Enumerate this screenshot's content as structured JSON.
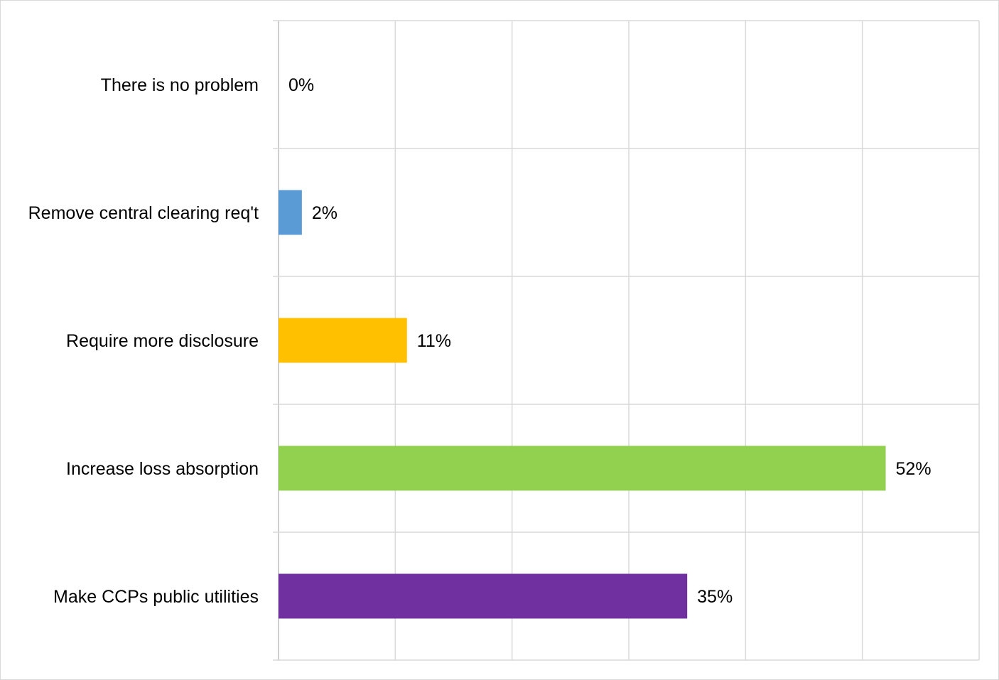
{
  "chart_data": {
    "type": "bar",
    "orientation": "horizontal",
    "title": "",
    "xlabel": "",
    "ylabel": "",
    "xlim": [
      0,
      60
    ],
    "grid": true,
    "legend": "none",
    "categories": [
      "There is no problem",
      "Remove central clearing req't",
      "Require more disclosure",
      "Increase loss absorption",
      "Make CCPs public utilities"
    ],
    "values": [
      0,
      2,
      11,
      52,
      35
    ],
    "value_labels": [
      "0%",
      "2%",
      "11%",
      "52%",
      "35%"
    ],
    "colors": [
      "#5b9bd5",
      "#5b9bd5",
      "#ffc000",
      "#92d050",
      "#7030a0"
    ]
  }
}
